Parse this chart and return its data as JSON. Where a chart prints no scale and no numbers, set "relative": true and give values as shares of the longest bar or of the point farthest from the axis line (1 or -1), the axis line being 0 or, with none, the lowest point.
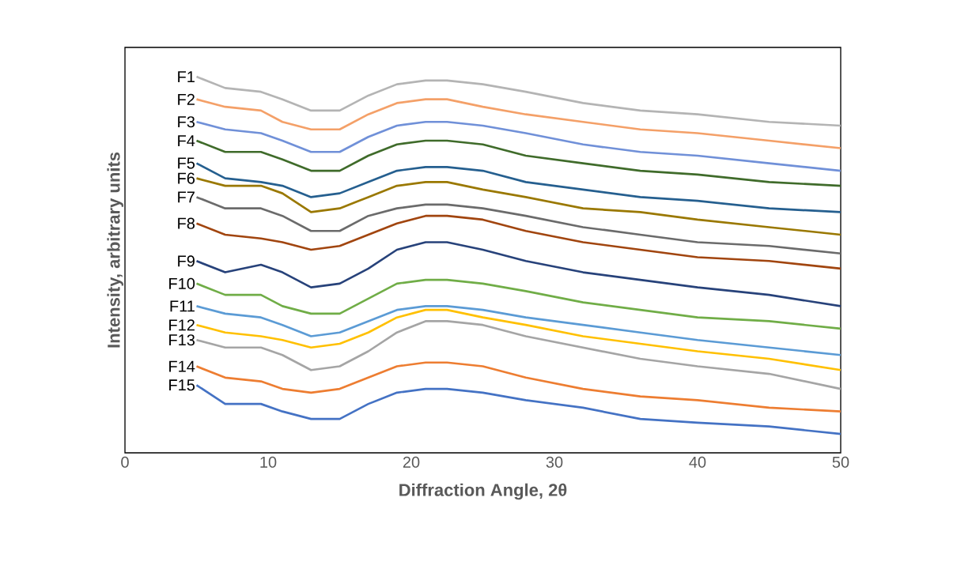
{
  "chart_data": {
    "type": "line",
    "relative": true,
    "xlabel": "Diffraction Angle, 2θ",
    "ylabel": "Intensity, arbitrary units",
    "x": [
      5,
      7,
      9.5,
      11,
      13,
      15,
      17,
      19,
      21,
      22.5,
      25,
      28,
      32,
      36,
      40,
      45,
      50
    ],
    "xlim": [
      0,
      50
    ],
    "xticks": [
      0,
      10,
      20,
      30,
      40,
      50
    ],
    "grid": false,
    "legend": false,
    "marker": "none",
    "line_style": "solid",
    "series": [
      {
        "name": "F1",
        "color": "#b4b4b4",
        "values": [
          1.0,
          0.97,
          0.96,
          0.94,
          0.91,
          0.91,
          0.95,
          0.98,
          0.99,
          0.99,
          0.98,
          0.96,
          0.93,
          0.91,
          0.9,
          0.88,
          0.87
        ]
      },
      {
        "name": "F2",
        "color": "#f4a068",
        "values": [
          0.94,
          0.92,
          0.91,
          0.88,
          0.86,
          0.86,
          0.9,
          0.93,
          0.94,
          0.94,
          0.92,
          0.9,
          0.88,
          0.86,
          0.85,
          0.83,
          0.81
        ]
      },
      {
        "name": "F3",
        "color": "#7090d8",
        "values": [
          0.88,
          0.86,
          0.85,
          0.83,
          0.8,
          0.8,
          0.84,
          0.87,
          0.88,
          0.88,
          0.87,
          0.85,
          0.82,
          0.8,
          0.79,
          0.77,
          0.75
        ]
      },
      {
        "name": "F4",
        "color": "#3f6b2a",
        "values": [
          0.83,
          0.8,
          0.8,
          0.78,
          0.75,
          0.75,
          0.79,
          0.82,
          0.83,
          0.83,
          0.82,
          0.79,
          0.77,
          0.75,
          0.74,
          0.72,
          0.71
        ]
      },
      {
        "name": "F5",
        "color": "#255f8f",
        "values": [
          0.77,
          0.73,
          0.72,
          0.71,
          0.68,
          0.69,
          0.72,
          0.75,
          0.76,
          0.76,
          0.75,
          0.72,
          0.7,
          0.68,
          0.67,
          0.65,
          0.64
        ]
      },
      {
        "name": "F6",
        "color": "#9a7800",
        "values": [
          0.73,
          0.71,
          0.71,
          0.69,
          0.64,
          0.65,
          0.68,
          0.71,
          0.72,
          0.72,
          0.7,
          0.68,
          0.65,
          0.64,
          0.62,
          0.6,
          0.58
        ]
      },
      {
        "name": "F7",
        "color": "#6b6b6b",
        "values": [
          0.68,
          0.65,
          0.65,
          0.63,
          0.59,
          0.59,
          0.63,
          0.65,
          0.66,
          0.66,
          0.65,
          0.63,
          0.6,
          0.58,
          0.56,
          0.55,
          0.53
        ]
      },
      {
        "name": "F8",
        "color": "#a1450f",
        "values": [
          0.61,
          0.58,
          0.57,
          0.56,
          0.54,
          0.55,
          0.58,
          0.61,
          0.63,
          0.63,
          0.62,
          0.59,
          0.56,
          0.54,
          0.52,
          0.51,
          0.49
        ]
      },
      {
        "name": "F9",
        "color": "#27427a",
        "values": [
          0.51,
          0.48,
          0.5,
          0.48,
          0.44,
          0.45,
          0.49,
          0.54,
          0.56,
          0.56,
          0.54,
          0.51,
          0.48,
          0.46,
          0.44,
          0.42,
          0.39
        ]
      },
      {
        "name": "F10",
        "color": "#70ad47",
        "values": [
          0.45,
          0.42,
          0.42,
          0.39,
          0.37,
          0.37,
          0.41,
          0.45,
          0.46,
          0.46,
          0.45,
          0.43,
          0.4,
          0.38,
          0.36,
          0.35,
          0.33
        ]
      },
      {
        "name": "F11",
        "color": "#5b9bd5",
        "values": [
          0.39,
          0.37,
          0.36,
          0.34,
          0.31,
          0.32,
          0.35,
          0.38,
          0.39,
          0.39,
          0.38,
          0.36,
          0.34,
          0.32,
          0.3,
          0.28,
          0.26
        ]
      },
      {
        "name": "F12",
        "color": "#ffc000",
        "values": [
          0.34,
          0.32,
          0.31,
          0.3,
          0.28,
          0.29,
          0.32,
          0.36,
          0.38,
          0.38,
          0.36,
          0.34,
          0.31,
          0.29,
          0.27,
          0.25,
          0.22
        ]
      },
      {
        "name": "F13",
        "color": "#a5a5a5",
        "values": [
          0.3,
          0.28,
          0.28,
          0.26,
          0.22,
          0.23,
          0.27,
          0.32,
          0.35,
          0.35,
          0.34,
          0.31,
          0.28,
          0.25,
          0.23,
          0.21,
          0.17
        ]
      },
      {
        "name": "F14",
        "color": "#ed7d31",
        "values": [
          0.23,
          0.2,
          0.19,
          0.17,
          0.16,
          0.17,
          0.2,
          0.23,
          0.24,
          0.24,
          0.23,
          0.2,
          0.17,
          0.15,
          0.14,
          0.12,
          0.11
        ]
      },
      {
        "name": "F15",
        "color": "#4472c4",
        "values": [
          0.18,
          0.13,
          0.13,
          0.11,
          0.09,
          0.09,
          0.13,
          0.16,
          0.17,
          0.17,
          0.16,
          0.14,
          0.12,
          0.09,
          0.08,
          0.07,
          0.05
        ]
      }
    ]
  }
}
